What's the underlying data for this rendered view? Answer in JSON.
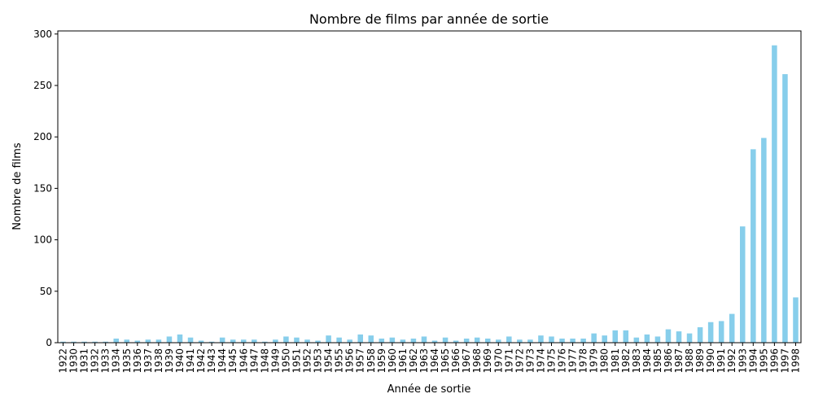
{
  "chart_data": {
    "type": "bar",
    "title": "Nombre de films par année de sortie",
    "xlabel": "Année de sortie",
    "ylabel": "Nombre de films",
    "ylim": [
      0,
      303
    ],
    "yticks": [
      0,
      50,
      100,
      150,
      200,
      250,
      300
    ],
    "bar_color": "#87ceeb",
    "grid": false,
    "legend": "none",
    "categories": [
      "1922",
      "1930",
      "1931",
      "1932",
      "1933",
      "1934",
      "1935",
      "1936",
      "1937",
      "1938",
      "1939",
      "1940",
      "1941",
      "1942",
      "1943",
      "1944",
      "1945",
      "1946",
      "1947",
      "1948",
      "1949",
      "1950",
      "1951",
      "1952",
      "1953",
      "1954",
      "1955",
      "1956",
      "1957",
      "1958",
      "1959",
      "1960",
      "1961",
      "1962",
      "1963",
      "1964",
      "1965",
      "1966",
      "1967",
      "1968",
      "1969",
      "1970",
      "1971",
      "1972",
      "1973",
      "1974",
      "1975",
      "1976",
      "1977",
      "1978",
      "1979",
      "1980",
      "1981",
      "1982",
      "1983",
      "1984",
      "1985",
      "1986",
      "1987",
      "1988",
      "1989",
      "1990",
      "1991",
      "1992",
      "1993",
      "1994",
      "1995",
      "1996",
      "1997",
      "1998"
    ],
    "values": [
      1,
      1,
      1,
      1,
      1,
      4,
      3,
      2,
      3,
      3,
      6,
      8,
      5,
      2,
      1,
      5,
      3,
      3,
      3,
      1,
      3,
      6,
      5,
      3,
      2,
      7,
      5,
      3,
      8,
      7,
      4,
      5,
      3,
      4,
      6,
      2,
      5,
      2,
      4,
      5,
      4,
      3,
      6,
      3,
      3,
      7,
      6,
      4,
      4,
      4,
      9,
      7,
      12,
      12,
      5,
      8,
      6,
      13,
      11,
      9,
      15,
      20,
      21,
      28,
      113,
      188,
      199,
      289,
      261,
      44
    ]
  }
}
